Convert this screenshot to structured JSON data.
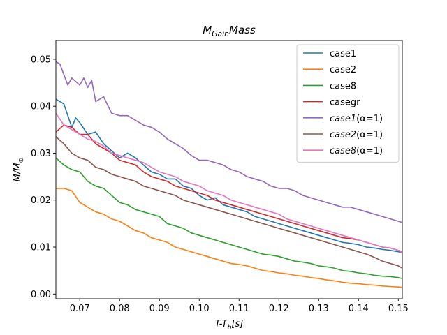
{
  "chart_data": {
    "type": "line",
    "title": "M_{Gain}Mass",
    "xlabel": "T-T_b[s]",
    "ylabel": "M/M_⊙",
    "xlim": [
      0.064,
      0.151
    ],
    "ylim": [
      -0.001,
      0.054
    ],
    "xticks": [
      0.07,
      0.08,
      0.09,
      0.1,
      0.11,
      0.12,
      0.13,
      0.14,
      0.15
    ],
    "yticks": [
      0.0,
      0.01,
      0.02,
      0.03,
      0.04,
      0.05
    ],
    "legend_position": "top-right",
    "grid": false,
    "x_range": [
      0.064,
      0.151
    ],
    "series": [
      {
        "name": "case1",
        "color": "#1f77b4",
        "x": [
          0.064,
          0.066,
          0.068,
          0.069,
          0.07,
          0.072,
          0.074,
          0.076,
          0.078,
          0.08,
          0.082,
          0.084,
          0.086,
          0.088,
          0.09,
          0.092,
          0.094,
          0.096,
          0.098,
          0.1,
          0.102,
          0.104,
          0.106,
          0.108,
          0.11,
          0.112,
          0.114,
          0.116,
          0.118,
          0.12,
          0.122,
          0.124,
          0.126,
          0.128,
          0.13,
          0.132,
          0.134,
          0.136,
          0.138,
          0.14,
          0.142,
          0.144,
          0.146,
          0.148,
          0.15,
          0.151
        ],
        "y": [
          0.0415,
          0.0405,
          0.0355,
          0.0375,
          0.0365,
          0.034,
          0.0345,
          0.032,
          0.0305,
          0.029,
          0.03,
          0.029,
          0.0275,
          0.026,
          0.0255,
          0.0245,
          0.0245,
          0.023,
          0.0225,
          0.021,
          0.02,
          0.0205,
          0.019,
          0.0185,
          0.018,
          0.0175,
          0.0165,
          0.016,
          0.0155,
          0.015,
          0.0145,
          0.014,
          0.0135,
          0.013,
          0.0125,
          0.012,
          0.0115,
          0.011,
          0.0108,
          0.0105,
          0.01,
          0.0098,
          0.0095,
          0.0093,
          0.009,
          0.0088
        ]
      },
      {
        "name": "case2",
        "color": "#ff7f0e",
        "x": [
          0.064,
          0.066,
          0.068,
          0.07,
          0.072,
          0.074,
          0.076,
          0.078,
          0.08,
          0.082,
          0.084,
          0.086,
          0.088,
          0.09,
          0.092,
          0.094,
          0.096,
          0.098,
          0.1,
          0.102,
          0.104,
          0.106,
          0.108,
          0.11,
          0.112,
          0.114,
          0.116,
          0.118,
          0.12,
          0.122,
          0.124,
          0.126,
          0.128,
          0.13,
          0.132,
          0.134,
          0.136,
          0.138,
          0.14,
          0.142,
          0.144,
          0.146,
          0.148,
          0.15,
          0.151
        ],
        "y": [
          0.0225,
          0.0225,
          0.022,
          0.0195,
          0.0185,
          0.0175,
          0.017,
          0.016,
          0.0155,
          0.0145,
          0.0135,
          0.013,
          0.012,
          0.0115,
          0.011,
          0.01,
          0.0095,
          0.009,
          0.0085,
          0.008,
          0.0075,
          0.007,
          0.0065,
          0.0063,
          0.006,
          0.0055,
          0.005,
          0.0048,
          0.0045,
          0.0043,
          0.004,
          0.0038,
          0.0035,
          0.0033,
          0.003,
          0.0028,
          0.0025,
          0.0023,
          0.0022,
          0.002,
          0.0019,
          0.0017,
          0.0016,
          0.0015,
          0.0014
        ]
      },
      {
        "name": "case8",
        "color": "#2ca02c",
        "x": [
          0.064,
          0.066,
          0.068,
          0.07,
          0.072,
          0.074,
          0.076,
          0.078,
          0.08,
          0.082,
          0.084,
          0.086,
          0.088,
          0.09,
          0.092,
          0.094,
          0.096,
          0.098,
          0.1,
          0.102,
          0.104,
          0.106,
          0.108,
          0.11,
          0.112,
          0.114,
          0.116,
          0.118,
          0.12,
          0.122,
          0.124,
          0.126,
          0.128,
          0.13,
          0.132,
          0.134,
          0.136,
          0.138,
          0.14,
          0.142,
          0.144,
          0.146,
          0.148,
          0.15,
          0.151
        ],
        "y": [
          0.029,
          0.0275,
          0.0265,
          0.026,
          0.024,
          0.023,
          0.0225,
          0.021,
          0.0195,
          0.019,
          0.018,
          0.0175,
          0.017,
          0.0165,
          0.015,
          0.0145,
          0.014,
          0.013,
          0.0125,
          0.012,
          0.0115,
          0.011,
          0.0105,
          0.01,
          0.0095,
          0.009,
          0.0085,
          0.0083,
          0.008,
          0.0075,
          0.007,
          0.0068,
          0.0065,
          0.006,
          0.0058,
          0.0055,
          0.005,
          0.0048,
          0.0045,
          0.0043,
          0.004,
          0.0038,
          0.0037,
          0.0035,
          0.0033
        ]
      },
      {
        "name": "casegr",
        "color": "#d62728",
        "x": [
          0.064,
          0.066,
          0.068,
          0.07,
          0.072,
          0.074,
          0.076,
          0.078,
          0.08,
          0.082,
          0.084,
          0.086,
          0.088,
          0.09,
          0.092,
          0.094,
          0.096,
          0.098,
          0.1,
          0.102,
          0.104,
          0.106,
          0.108,
          0.11,
          0.112,
          0.114,
          0.116,
          0.118,
          0.12,
          0.122,
          0.124,
          0.126,
          0.128,
          0.13,
          0.132,
          0.134,
          0.136,
          0.138,
          0.14,
          0.142,
          0.144,
          0.146,
          0.148,
          0.15,
          0.151
        ],
        "y": [
          0.0345,
          0.036,
          0.0355,
          0.034,
          0.034,
          0.032,
          0.031,
          0.03,
          0.0285,
          0.028,
          0.0275,
          0.026,
          0.025,
          0.0245,
          0.024,
          0.023,
          0.0225,
          0.022,
          0.0215,
          0.021,
          0.02,
          0.0195,
          0.019,
          0.0185,
          0.018,
          0.0175,
          0.017,
          0.0165,
          0.016,
          0.0155,
          0.015,
          0.0145,
          0.014,
          0.0135,
          0.013,
          0.0125,
          0.012,
          0.0118,
          0.0115,
          0.011,
          0.0105,
          0.01,
          0.0098,
          0.0093,
          0.009
        ]
      },
      {
        "name": "case1(α=1)",
        "label_main": "case1",
        "label_param": "(α=1)",
        "color": "#9467bd",
        "x": [
          0.064,
          0.065,
          0.067,
          0.068,
          0.07,
          0.071,
          0.072,
          0.073,
          0.074,
          0.076,
          0.078,
          0.08,
          0.082,
          0.084,
          0.086,
          0.088,
          0.09,
          0.092,
          0.094,
          0.096,
          0.098,
          0.1,
          0.102,
          0.104,
          0.106,
          0.108,
          0.11,
          0.112,
          0.114,
          0.116,
          0.118,
          0.12,
          0.122,
          0.124,
          0.126,
          0.128,
          0.13,
          0.132,
          0.134,
          0.136,
          0.138,
          0.14,
          0.142,
          0.144,
          0.146,
          0.148,
          0.15,
          0.151
        ],
        "y": [
          0.0495,
          0.049,
          0.0445,
          0.046,
          0.0445,
          0.046,
          0.044,
          0.0455,
          0.041,
          0.042,
          0.0385,
          0.038,
          0.038,
          0.037,
          0.036,
          0.0355,
          0.0345,
          0.033,
          0.032,
          0.031,
          0.0295,
          0.0285,
          0.0285,
          0.028,
          0.0275,
          0.0265,
          0.026,
          0.025,
          0.0245,
          0.024,
          0.023,
          0.0225,
          0.0225,
          0.022,
          0.021,
          0.0205,
          0.02,
          0.0195,
          0.019,
          0.0185,
          0.0185,
          0.018,
          0.0175,
          0.017,
          0.0165,
          0.016,
          0.0155,
          0.0152
        ]
      },
      {
        "name": "case2(α=1)",
        "label_main": "case2",
        "label_param": "(α=1)",
        "color": "#8c564b",
        "x": [
          0.064,
          0.066,
          0.068,
          0.07,
          0.072,
          0.074,
          0.076,
          0.078,
          0.08,
          0.082,
          0.084,
          0.086,
          0.088,
          0.09,
          0.092,
          0.094,
          0.096,
          0.098,
          0.1,
          0.102,
          0.104,
          0.106,
          0.108,
          0.11,
          0.112,
          0.114,
          0.116,
          0.118,
          0.12,
          0.122,
          0.124,
          0.126,
          0.128,
          0.13,
          0.132,
          0.134,
          0.136,
          0.138,
          0.14,
          0.142,
          0.144,
          0.146,
          0.148,
          0.15,
          0.151
        ],
        "y": [
          0.0335,
          0.032,
          0.03,
          0.029,
          0.0285,
          0.027,
          0.0265,
          0.0255,
          0.025,
          0.0245,
          0.024,
          0.023,
          0.0225,
          0.022,
          0.0215,
          0.021,
          0.02,
          0.0195,
          0.019,
          0.0185,
          0.018,
          0.0175,
          0.017,
          0.0165,
          0.016,
          0.0155,
          0.015,
          0.0145,
          0.014,
          0.0135,
          0.013,
          0.0125,
          0.012,
          0.0115,
          0.011,
          0.0105,
          0.01,
          0.0095,
          0.009,
          0.0085,
          0.0078,
          0.007,
          0.0065,
          0.006,
          0.0055
        ]
      },
      {
        "name": "case8(α=1)",
        "label_main": "case8",
        "label_param": "(α=1)",
        "color": "#e377c2",
        "x": [
          0.064,
          0.066,
          0.068,
          0.07,
          0.072,
          0.074,
          0.076,
          0.078,
          0.08,
          0.082,
          0.084,
          0.086,
          0.088,
          0.09,
          0.092,
          0.094,
          0.096,
          0.098,
          0.1,
          0.102,
          0.104,
          0.106,
          0.108,
          0.11,
          0.112,
          0.114,
          0.116,
          0.118,
          0.12,
          0.122,
          0.124,
          0.126,
          0.128,
          0.13,
          0.132,
          0.134,
          0.136,
          0.138,
          0.14,
          0.142,
          0.144,
          0.146,
          0.148,
          0.15,
          0.151
        ],
        "y": [
          0.0385,
          0.036,
          0.035,
          0.034,
          0.033,
          0.0325,
          0.0315,
          0.03,
          0.0295,
          0.029,
          0.0285,
          0.028,
          0.027,
          0.026,
          0.0255,
          0.025,
          0.024,
          0.0235,
          0.023,
          0.022,
          0.0215,
          0.021,
          0.02,
          0.0195,
          0.019,
          0.0185,
          0.018,
          0.0175,
          0.017,
          0.016,
          0.0155,
          0.015,
          0.0145,
          0.014,
          0.0135,
          0.013,
          0.0125,
          0.012,
          0.0115,
          0.011,
          0.0105,
          0.01,
          0.0098,
          0.0093,
          0.0088
        ]
      }
    ]
  }
}
